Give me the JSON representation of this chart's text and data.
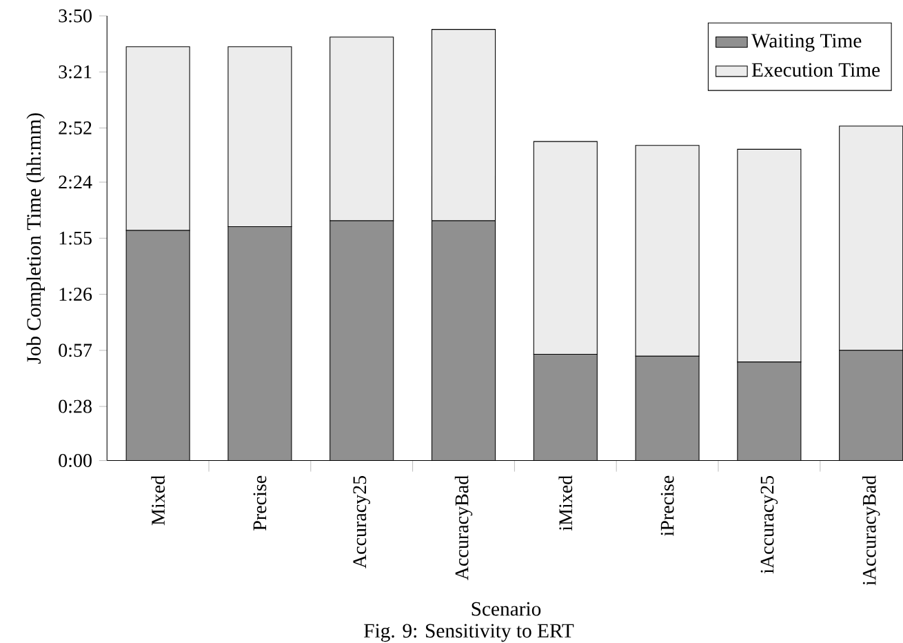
{
  "chart_data": {
    "type": "bar",
    "stacked": true,
    "xlabel": "Scenario",
    "ylabel": "Job Completion Time (hh:mm)",
    "annotations": [
      "Fig. 9: Sensitivity to ERT"
    ],
    "categories": [
      "Mixed",
      "Precise",
      "Accuracy25",
      "AccuracyBad",
      "iMixed",
      "iPrecise",
      "iAccuracy25",
      "iAccuracyBad"
    ],
    "series": [
      {
        "name": "Waiting Time",
        "color": "#909090",
        "values": [
          119,
          121,
          124,
          124,
          55,
          54,
          51,
          57
        ]
      },
      {
        "name": "Execution Time",
        "color": "#ececec",
        "values": [
          95,
          93,
          95,
          99,
          110,
          109,
          110,
          116
        ]
      }
    ],
    "ylim": [
      0,
      230
    ],
    "yticks": [
      {
        "value": 0,
        "label": "0:00"
      },
      {
        "value": 28,
        "label": "0:28"
      },
      {
        "value": 57,
        "label": "0:57"
      },
      {
        "value": 86,
        "label": "1:26"
      },
      {
        "value": 115,
        "label": "1:55"
      },
      {
        "value": 144,
        "label": "2:24"
      },
      {
        "value": 172,
        "label": "2:52"
      },
      {
        "value": 201,
        "label": "3:21"
      },
      {
        "value": 230,
        "label": "3:50"
      }
    ],
    "legend": "top right",
    "grid": false
  }
}
